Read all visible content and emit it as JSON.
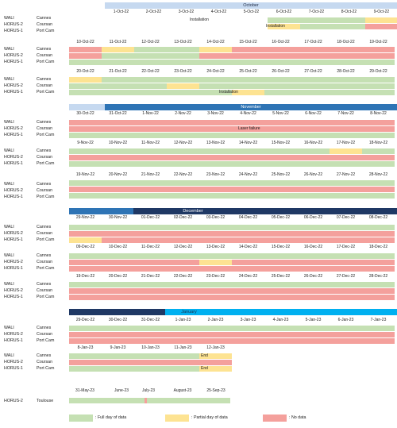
{
  "colors": {
    "full": "#c5e0b3",
    "partial": "#fde392",
    "nodata": "#f4a09c",
    "month_light": "#c6d9f0",
    "month_mid": "#2e74b5",
    "month_dark": "#1f3864",
    "month_cyan": "#00b0f0"
  },
  "instruments": [
    {
      "name": "WALI",
      "site": "Cannes"
    },
    {
      "name": "HORUS-2",
      "site": "Coursan"
    },
    {
      "name": "HORUS-1",
      "site": "Port Cam"
    }
  ],
  "months": {
    "october": "October",
    "november": "November",
    "december": "December",
    "january": "January"
  },
  "blocks": [
    {
      "days": [
        "1-Oct-22",
        "2-Oct-22",
        "3-Oct-22",
        "4-Oct-22",
        "5-Oct-22",
        "6-Oct-22",
        "7-Oct-22",
        "8-Oct-22",
        "9-Oct-22"
      ],
      "notes": [
        "Installation",
        "Installation"
      ]
    },
    {
      "days": [
        "10-Oct-22",
        "11-Oct-22",
        "12-Oct-22",
        "13-Oct-22",
        "14-Oct-22",
        "15-Oct-22",
        "16-Oct-22",
        "17-Oct-22",
        "18-Oct-22",
        "19-Oct-22"
      ]
    },
    {
      "days": [
        "20-Oct-22",
        "21-Oct-22",
        "22-Oct-22",
        "23-Oct-22",
        "24-Oct-22",
        "25-Oct-22",
        "26-Oct-22",
        "27-Oct-22",
        "28-Oct-22",
        "29-Oct-22"
      ],
      "notes": [
        "Installation"
      ]
    },
    {
      "days": [
        "30-Oct-22",
        "31-Oct-22",
        "1-Nov-22",
        "2-Nov-22",
        "3-Nov-22",
        "4-Nov-22",
        "5-Nov-22",
        "6-Nov-22",
        "7-Nov-22",
        "8-Nov-22"
      ],
      "notes": [
        "Laser failure"
      ]
    },
    {
      "days": [
        "9-Nov-22",
        "10-Nov-22",
        "11-Nov-22",
        "12-Nov-22",
        "13-Nov-22",
        "14-Nov-22",
        "15-Nov-22",
        "16-Nov-22",
        "17-Nov-22",
        "18-Nov-22"
      ]
    },
    {
      "days": [
        "19-Nov-22",
        "20-Nov-22",
        "21-Nov-22",
        "22-Nov-22",
        "23-Nov-22",
        "24-Nov-22",
        "25-Nov-22",
        "26-Nov-22",
        "27-Nov-22",
        "28-Nov-22"
      ]
    },
    {
      "days": [
        "29-Nov-22",
        "30-Nov-22",
        "01-Dec-22",
        "02-Dec-22",
        "03-Dec-22",
        "04-Dec-22",
        "05-Dec-22",
        "06-Dec-22",
        "07-Dec-22",
        "08-Dec-22"
      ]
    },
    {
      "days": [
        "09-Dec-22",
        "10-Dec-22",
        "11-Dec-22",
        "12-Dec-22",
        "13-Dec-22",
        "14-Dec-22",
        "15-Dec-22",
        "16-Dec-22",
        "17-Dec-22",
        "18-Dec-22"
      ]
    },
    {
      "days": [
        "19-Dec-22",
        "20-Dec-22",
        "21-Dec-22",
        "22-Dec-22",
        "23-Dec-22",
        "24-Dec-22",
        "25-Dec-22",
        "26-Dec-22",
        "27-Dec-22",
        "28-Dec-22"
      ]
    },
    {
      "days": [
        "29-Dec-22",
        "30-Dec-22",
        "31-Dec-22",
        "1-Jan-23",
        "2-Jan-23",
        "3-Jan-23",
        "4-Jan-23",
        "5-Jan-23",
        "6-Jan-23",
        "7-Jan-23"
      ]
    },
    {
      "days": [
        "8-Jan-23",
        "9-Jan-23",
        "10-Jan-23",
        "11-Jan-23",
        "12-Jan-23"
      ],
      "notes": [
        "End",
        "End"
      ]
    }
  ],
  "toulouse": {
    "instrument": "HORUS-2",
    "site": "Toulouse",
    "labels": [
      "31-May-23",
      "June-23",
      "July-23",
      "August-23",
      "25-Sep-23"
    ]
  },
  "legend": {
    "full": ": Full day of data",
    "partial": ": Partial day of data",
    "nodata": ": No data"
  }
}
